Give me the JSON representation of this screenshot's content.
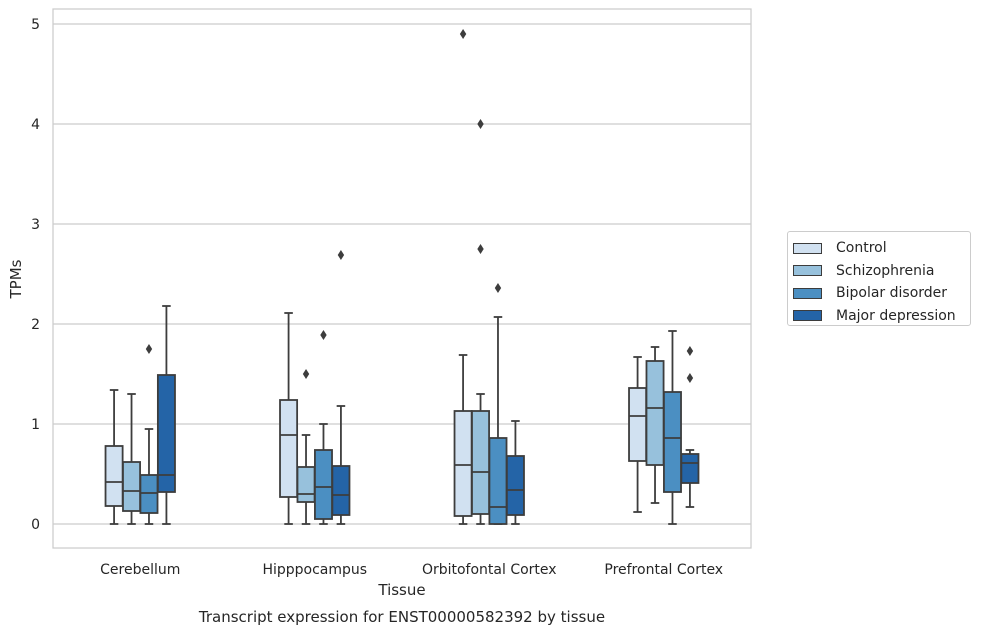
{
  "chart_data": {
    "type": "boxplot",
    "title": "Transcript expression for ENST00000582392 by tissue",
    "xlabel": "Tissue",
    "ylabel": "TPMs",
    "ylim": [
      -0.24,
      5.15
    ],
    "yticks": [
      0,
      1,
      2,
      3,
      4,
      5
    ],
    "grid": "horizontal",
    "legend_position": "right",
    "categories": [
      "Cerebellum",
      "Hipppocampus",
      "Orbitofontal Cortex",
      "Prefrontal Cortex"
    ],
    "series": [
      {
        "name": "Control",
        "color": "#d1e1f1",
        "boxes": [
          {
            "whislo": 0.0,
            "q1": 0.18,
            "med": 0.42,
            "q3": 0.78,
            "whishi": 1.34,
            "fliers": []
          },
          {
            "whislo": 0.0,
            "q1": 0.27,
            "med": 0.89,
            "q3": 1.24,
            "whishi": 2.11,
            "fliers": []
          },
          {
            "whislo": 0.0,
            "q1": 0.08,
            "med": 0.59,
            "q3": 1.13,
            "whishi": 1.69,
            "fliers": [
              4.9
            ]
          },
          {
            "whislo": 0.12,
            "q1": 0.63,
            "med": 1.08,
            "q3": 1.36,
            "whishi": 1.67,
            "fliers": []
          }
        ]
      },
      {
        "name": "Schizophrenia",
        "color": "#97c1dc",
        "boxes": [
          {
            "whislo": 0.0,
            "q1": 0.13,
            "med": 0.33,
            "q3": 0.62,
            "whishi": 1.3,
            "fliers": []
          },
          {
            "whislo": 0.0,
            "q1": 0.22,
            "med": 0.3,
            "q3": 0.57,
            "whishi": 0.89,
            "fliers": [
              1.5
            ]
          },
          {
            "whislo": 0.0,
            "q1": 0.1,
            "med": 0.52,
            "q3": 1.13,
            "whishi": 1.3,
            "fliers": [
              4.0,
              2.75
            ]
          },
          {
            "whislo": 0.21,
            "q1": 0.59,
            "med": 1.16,
            "q3": 1.63,
            "whishi": 1.77,
            "fliers": []
          }
        ]
      },
      {
        "name": "Bipolar disorder",
        "color": "#4b8fc2",
        "boxes": [
          {
            "whislo": 0.0,
            "q1": 0.11,
            "med": 0.31,
            "q3": 0.49,
            "whishi": 0.95,
            "fliers": [
              1.75
            ]
          },
          {
            "whislo": 0.0,
            "q1": 0.05,
            "med": 0.37,
            "q3": 0.74,
            "whishi": 1.0,
            "fliers": [
              1.89
            ]
          },
          {
            "whislo": 0.0,
            "q1": 0.0,
            "med": 0.17,
            "q3": 0.86,
            "whishi": 2.07,
            "fliers": [
              2.36
            ]
          },
          {
            "whislo": 0.0,
            "q1": 0.32,
            "med": 0.86,
            "q3": 1.32,
            "whishi": 1.93,
            "fliers": []
          }
        ]
      },
      {
        "name": "Major depression",
        "color": "#2464a7",
        "boxes": [
          {
            "whislo": 0.0,
            "q1": 0.32,
            "med": 0.49,
            "q3": 1.49,
            "whishi": 2.18,
            "fliers": []
          },
          {
            "whislo": 0.0,
            "q1": 0.09,
            "med": 0.29,
            "q3": 0.58,
            "whishi": 1.18,
            "fliers": [
              2.69
            ]
          },
          {
            "whislo": 0.0,
            "q1": 0.09,
            "med": 0.34,
            "q3": 0.68,
            "whishi": 1.03,
            "fliers": []
          },
          {
            "whislo": 0.17,
            "q1": 0.41,
            "med": 0.61,
            "q3": 0.7,
            "whishi": 0.74,
            "fliers": [
              1.73,
              1.46
            ]
          }
        ]
      }
    ]
  }
}
